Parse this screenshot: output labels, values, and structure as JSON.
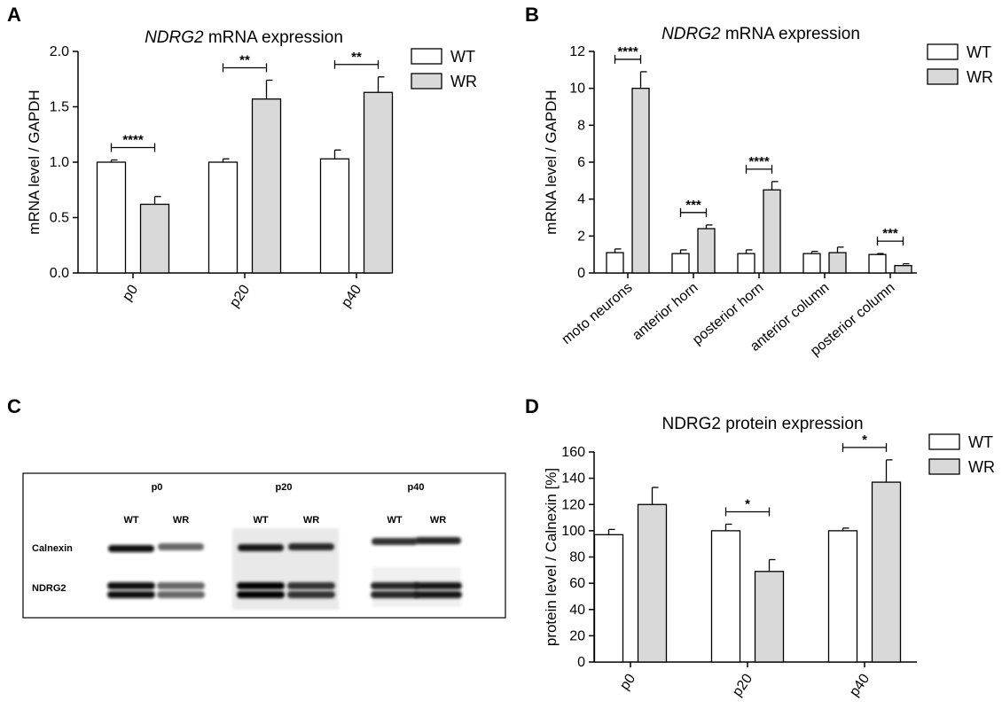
{
  "colors": {
    "wt": "#ffffff",
    "wr": "#d9d9d9",
    "stroke": "#000000"
  },
  "panels": {
    "A": {
      "letter": "A"
    },
    "B": {
      "letter": "B"
    },
    "C": {
      "letter": "C"
    },
    "D": {
      "letter": "D"
    }
  },
  "blot": {
    "timepoints": [
      "p0",
      "p20",
      "p40"
    ],
    "lanes": [
      "WT",
      "WR",
      "WT",
      "WR",
      "WT",
      "WR"
    ],
    "rows": [
      "Calnexin",
      "NDRG2"
    ],
    "calnexin_intensity": [
      0.95,
      0.6,
      0.9,
      0.85,
      0.8,
      0.85
    ],
    "ndrg2_intensity": [
      0.95,
      0.6,
      1.0,
      0.8,
      0.85,
      0.9
    ]
  },
  "chart_data": [
    {
      "id": "A",
      "type": "bar",
      "title_italic": "NDRG2",
      "title_rest": " mRNA expression",
      "ylabel": "mRNA level / GAPDH",
      "ylim": [
        0,
        2.0
      ],
      "yticks": [
        "0.0",
        "0.5",
        "1.0",
        "1.5",
        "2.0"
      ],
      "ytick_values": [
        0,
        0.5,
        1.0,
        1.5,
        2.0
      ],
      "categories": [
        "p0",
        "p20",
        "p40"
      ],
      "series": [
        {
          "name": "WT",
          "values": [
            1.0,
            1.0,
            1.03
          ],
          "errors": [
            0.02,
            0.03,
            0.08
          ]
        },
        {
          "name": "WR",
          "values": [
            0.62,
            1.57,
            1.63
          ],
          "errors": [
            0.07,
            0.17,
            0.14
          ]
        }
      ],
      "significance": [
        "****",
        "**",
        "**"
      ],
      "legend": "top-right"
    },
    {
      "id": "B",
      "type": "bar",
      "title_italic": "NDRG2",
      "title_rest": " mRNA expression",
      "ylabel": "mRNA level / GAPDH",
      "ylim": [
        0,
        12
      ],
      "yticks": [
        "0",
        "2",
        "4",
        "6",
        "8",
        "10",
        "12"
      ],
      "ytick_values": [
        0,
        2,
        4,
        6,
        8,
        10,
        12
      ],
      "categories": [
        "moto neurons",
        "anterior horn",
        "posterior horn",
        "anterior column",
        "posterior column"
      ],
      "series": [
        {
          "name": "WT",
          "values": [
            1.1,
            1.05,
            1.05,
            1.05,
            1.0
          ],
          "errors": [
            0.2,
            0.2,
            0.2,
            0.12,
            0.05
          ]
        },
        {
          "name": "WR",
          "values": [
            10.0,
            2.4,
            4.5,
            1.1,
            0.4
          ],
          "errors": [
            0.9,
            0.2,
            0.45,
            0.3,
            0.1
          ]
        }
      ],
      "significance": [
        "****",
        "***",
        "****",
        "",
        "***"
      ],
      "legend": "top-right"
    },
    {
      "id": "D",
      "type": "bar",
      "title": "NDRG2 protein expression",
      "ylabel": "protein level / Calnexin [%]",
      "ylim": [
        0,
        160
      ],
      "yticks": [
        "0",
        "20",
        "40",
        "60",
        "80",
        "100",
        "120",
        "140",
        "160"
      ],
      "ytick_values": [
        0,
        20,
        40,
        60,
        80,
        100,
        120,
        140,
        160
      ],
      "categories": [
        "p0",
        "p20",
        "p40"
      ],
      "series": [
        {
          "name": "WT",
          "values": [
            97,
            100,
            100
          ],
          "errors": [
            4,
            5,
            2
          ]
        },
        {
          "name": "WR",
          "values": [
            120,
            69,
            137
          ],
          "errors": [
            13,
            9,
            17
          ]
        }
      ],
      "significance": [
        "",
        "*",
        "*"
      ],
      "legend": "top-right"
    }
  ]
}
